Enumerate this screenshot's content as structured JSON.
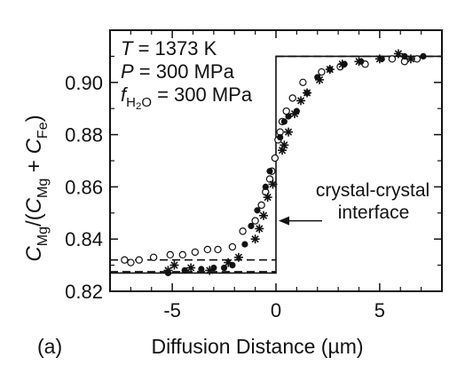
{
  "chart_data": {
    "type": "scatter",
    "panel_label": "(a)",
    "xlabel": "Diffusion Distance (µm)",
    "ylabel": {
      "parts": [
        {
          "t": "C",
          "style": "italic"
        },
        {
          "t": "Mg",
          "style": "sub"
        },
        {
          "t": "/(",
          "style": "normal"
        },
        {
          "t": "C",
          "style": "italic"
        },
        {
          "t": "Mg",
          "style": "sub"
        },
        {
          "t": " + ",
          "style": "normal"
        },
        {
          "t": "C",
          "style": "italic"
        },
        {
          "t": "Fe",
          "style": "sub"
        },
        {
          "t": ")",
          "style": "normal"
        }
      ]
    },
    "xlim": [
      -8,
      8
    ],
    "ylim": [
      0.82,
      0.92
    ],
    "x_ticks": [
      -5,
      0,
      5
    ],
    "x_tick_labels": [
      "-5",
      "0",
      "5"
    ],
    "y_ticks": [
      0.82,
      0.84,
      0.86,
      0.88,
      0.9
    ],
    "y_tick_labels": [
      "0.82",
      "0.84",
      "0.86",
      "0.88",
      "0.90"
    ],
    "grid": false,
    "conditions": [
      [
        {
          "t": "T",
          "style": "italic"
        },
        {
          "t": " = 1373 K",
          "style": "normal"
        }
      ],
      [
        {
          "t": "P",
          "style": "italic"
        },
        {
          "t": " = 300 MPa",
          "style": "normal"
        }
      ],
      [
        {
          "t": "f",
          "style": "italic"
        },
        {
          "t": "H",
          "style": "sub"
        },
        {
          "t": "2",
          "style": "subsub"
        },
        {
          "t": "O",
          "style": "sub"
        },
        {
          "t": " = 300 MPa",
          "style": "normal"
        }
      ]
    ],
    "annotation": {
      "lines": [
        "crystal-crystal",
        "interface"
      ],
      "arrow_to_x": 0,
      "arrow_y": 0.847
    },
    "reference_lines": [
      {
        "name": "initial-step",
        "style": "solid",
        "points": [
          [
            -8,
            0.827
          ],
          [
            0,
            0.827
          ],
          [
            0,
            0.91
          ],
          [
            8,
            0.91
          ]
        ]
      },
      {
        "name": "upper-plateau",
        "style": "dashed",
        "points": [
          [
            0,
            0.91
          ],
          [
            8,
            0.91
          ]
        ]
      },
      {
        "name": "lower-plateau-upper",
        "style": "dashed",
        "points": [
          [
            -8,
            0.832
          ],
          [
            0,
            0.832
          ]
        ]
      },
      {
        "name": "lower-plateau-lower",
        "style": "dashed",
        "points": [
          [
            -8,
            0.8275
          ],
          [
            0,
            0.8275
          ]
        ]
      }
    ],
    "series": [
      {
        "marker": "open-circle",
        "points": [
          [
            -7.3,
            0.832
          ],
          [
            -7.0,
            0.831
          ],
          [
            -6.6,
            0.832
          ],
          [
            -5.9,
            0.833
          ],
          [
            -5.1,
            0.834
          ],
          [
            -4.5,
            0.834
          ],
          [
            -3.9,
            0.835
          ],
          [
            -3.3,
            0.836
          ],
          [
            -2.8,
            0.836
          ],
          [
            -2.1,
            0.837
          ],
          [
            -1.6,
            0.843
          ],
          [
            -1.0,
            0.847
          ],
          [
            -0.7,
            0.853
          ],
          [
            -0.5,
            0.858
          ],
          [
            -0.3,
            0.863
          ],
          [
            -0.2,
            0.866
          ],
          [
            -0.05,
            0.871
          ],
          [
            0.1,
            0.878
          ],
          [
            0.2,
            0.881
          ],
          [
            0.3,
            0.885
          ],
          [
            0.5,
            0.889
          ],
          [
            0.8,
            0.894
          ],
          [
            1.3,
            0.9
          ],
          [
            2.2,
            0.904
          ],
          [
            3.1,
            0.906
          ],
          [
            4.3,
            0.907
          ],
          [
            5.6,
            0.909
          ],
          [
            6.2,
            0.908
          ],
          [
            6.8,
            0.909
          ]
        ]
      },
      {
        "marker": "filled-circle",
        "points": [
          [
            -5.2,
            0.827
          ],
          [
            -4.4,
            0.828
          ],
          [
            -3.6,
            0.8285
          ],
          [
            -3.0,
            0.829
          ],
          [
            -2.5,
            0.829
          ],
          [
            -2.1,
            0.83
          ],
          [
            -1.5,
            0.838
          ],
          [
            -1.2,
            0.845
          ],
          [
            -0.9,
            0.851
          ],
          [
            -0.5,
            0.86
          ],
          [
            -0.3,
            0.866
          ],
          [
            0.2,
            0.879
          ],
          [
            0.4,
            0.885
          ],
          [
            0.6,
            0.887
          ],
          [
            1.0,
            0.889
          ],
          [
            1.5,
            0.896
          ],
          [
            2.0,
            0.902
          ],
          [
            2.6,
            0.905
          ],
          [
            3.3,
            0.907
          ],
          [
            4.1,
            0.908
          ],
          [
            5.1,
            0.909
          ],
          [
            6.2,
            0.91
          ],
          [
            7.1,
            0.91
          ]
        ]
      },
      {
        "marker": "asterisk",
        "points": [
          [
            -5.2,
            0.828
          ],
          [
            -4.9,
            0.83
          ],
          [
            -4.1,
            0.829
          ],
          [
            -3.2,
            0.828
          ],
          [
            -2.3,
            0.831
          ],
          [
            -1.8,
            0.833
          ],
          [
            -1.0,
            0.84
          ],
          [
            -0.8,
            0.844
          ],
          [
            -0.6,
            0.849
          ],
          [
            -0.4,
            0.856
          ],
          [
            -0.15,
            0.861
          ],
          [
            0.3,
            0.874
          ],
          [
            0.4,
            0.876
          ],
          [
            0.6,
            0.881
          ],
          [
            0.9,
            0.888
          ],
          [
            1.2,
            0.893
          ],
          [
            1.5,
            0.896
          ],
          [
            2.1,
            0.901
          ],
          [
            2.6,
            0.905
          ],
          [
            3.2,
            0.907
          ],
          [
            4.0,
            0.908
          ],
          [
            5.0,
            0.909
          ],
          [
            5.9,
            0.911
          ],
          [
            6.5,
            0.909
          ]
        ]
      }
    ]
  }
}
